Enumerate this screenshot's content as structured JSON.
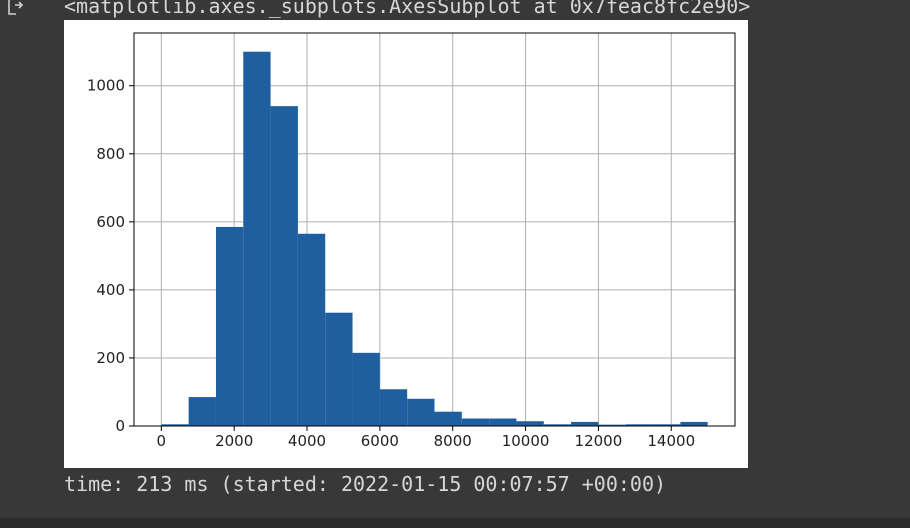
{
  "output": {
    "repr": "<matplotlib.axes._subplots.AxesSubplot at 0x7feac8fc2e90>",
    "timing": "time: 213 ms (started: 2022-01-15 00:07:57 +00:00)"
  },
  "chart_data": {
    "type": "bar",
    "title": "",
    "xlabel": "",
    "ylabel": "",
    "xlim": [
      -750,
      15750
    ],
    "ylim": [
      0,
      1155
    ],
    "grid": true,
    "bar_color": "#1f5fa0",
    "bin_edges": [
      0,
      750,
      1500,
      2250,
      3000,
      3750,
      4500,
      5250,
      6000,
      6750,
      7500,
      8250,
      9000,
      9750,
      10500,
      11250,
      12000,
      12750,
      13500,
      14250,
      15000
    ],
    "counts": [
      5,
      85,
      585,
      1100,
      940,
      565,
      333,
      215,
      108,
      80,
      42,
      22,
      22,
      14,
      5,
      12,
      4,
      5,
      5,
      12
    ],
    "xticks": [
      0,
      2000,
      4000,
      6000,
      8000,
      10000,
      12000,
      14000
    ],
    "xtick_labels": [
      "0",
      "2000",
      "4000",
      "6000",
      "8000",
      "10000",
      "12000",
      "14000"
    ],
    "yticks": [
      0,
      200,
      400,
      600,
      800,
      1000
    ],
    "ytick_labels": [
      "0",
      "200",
      "400",
      "600",
      "800",
      "1000"
    ]
  }
}
